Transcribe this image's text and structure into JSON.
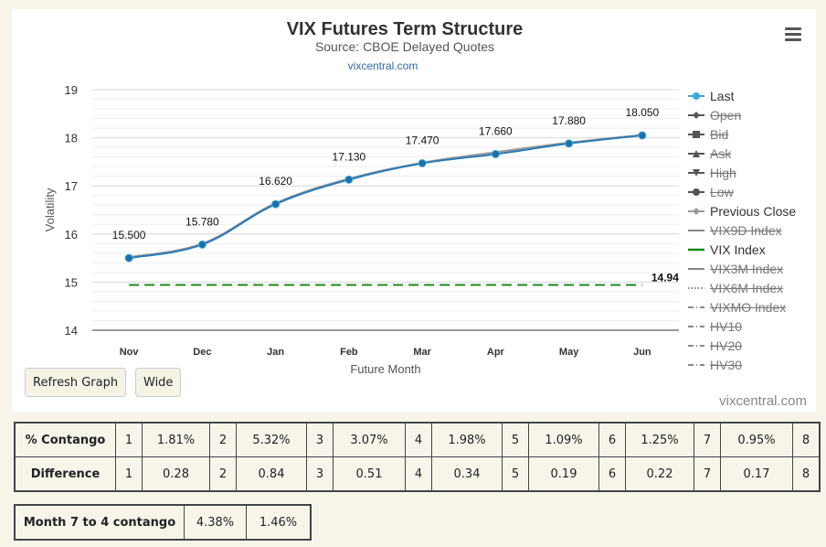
{
  "chart_data": {
    "type": "line",
    "title": "VIX Futures Term Structure",
    "subtitle": "Source: CBOE Delayed Quotes",
    "link": "vixcentral.com",
    "xlabel": "Future Month",
    "ylabel": "Volatility",
    "categories": [
      "Nov",
      "Dec",
      "Jan",
      "Feb",
      "Mar",
      "Apr",
      "May",
      "Jun"
    ],
    "ylim": [
      14,
      19
    ],
    "yticks": [
      14,
      15,
      16,
      17,
      18,
      19
    ],
    "grid": true,
    "legend_position": "right",
    "series": [
      {
        "name": "Last",
        "values": [
          15.5,
          15.78,
          16.62,
          17.13,
          17.47,
          17.66,
          17.88,
          18.05
        ],
        "labels": [
          "15.500",
          "15.780",
          "16.620",
          "17.130",
          "17.470",
          "17.660",
          "17.880",
          "18.050"
        ],
        "color": "#2a7ab8"
      },
      {
        "name": "Previous Close",
        "values": [
          15.52,
          15.8,
          16.64,
          17.15,
          17.48,
          17.7,
          17.9,
          18.06
        ],
        "color": "#999999"
      },
      {
        "name": "VIX Index",
        "value": 14.94,
        "label": "14.94",
        "color": "#1a8a1a",
        "style": "dashed"
      }
    ],
    "credit": "vixcentral.com"
  },
  "legend": [
    {
      "label": "Last",
      "symbol": "circle-line",
      "color": "#3aa9e0",
      "hidden": false
    },
    {
      "label": "Open",
      "symbol": "diamond-line",
      "color": "#555555",
      "hidden": true
    },
    {
      "label": "Bid",
      "symbol": "square-line",
      "color": "#555555",
      "hidden": true
    },
    {
      "label": "Ask",
      "symbol": "triangle-line",
      "color": "#555555",
      "hidden": true
    },
    {
      "label": "High",
      "symbol": "triangle-down-line",
      "color": "#555555",
      "hidden": true
    },
    {
      "label": "Low",
      "symbol": "circle-line",
      "color": "#555555",
      "hidden": true
    },
    {
      "label": "Previous Close",
      "symbol": "diamond-line",
      "color": "#999999",
      "hidden": false
    },
    {
      "label": "VIX9D Index",
      "symbol": "solid-line",
      "color": "#888888",
      "hidden": true
    },
    {
      "label": "VIX Index",
      "symbol": "solid-line",
      "color": "#1a8a1a",
      "hidden": false
    },
    {
      "label": "VIX3M Index",
      "symbol": "solid-line",
      "color": "#888888",
      "hidden": true
    },
    {
      "label": "VIX6M Index",
      "symbol": "dotted-line",
      "color": "#888888",
      "hidden": true
    },
    {
      "label": "VIXMO Index",
      "symbol": "dash-dot-line",
      "color": "#888888",
      "hidden": true
    },
    {
      "label": "HV10",
      "symbol": "dash-dot-line",
      "color": "#888888",
      "hidden": true
    },
    {
      "label": "HV20",
      "symbol": "dash-dot-line",
      "color": "#888888",
      "hidden": true
    },
    {
      "label": "HV30",
      "symbol": "dash-dot-line",
      "color": "#888888",
      "hidden": true
    }
  ],
  "buttons": {
    "refresh": "Refresh Graph",
    "wide": "Wide"
  },
  "contango_table": {
    "rows": [
      {
        "header": "% Contango",
        "cells": [
          "1",
          "1.81%",
          "2",
          "5.32%",
          "3",
          "3.07%",
          "4",
          "1.98%",
          "5",
          "1.09%",
          "6",
          "1.25%",
          "7",
          "0.95%",
          "8"
        ]
      },
      {
        "header": "Difference",
        "cells": [
          "1",
          "0.28",
          "2",
          "0.84",
          "3",
          "0.51",
          "4",
          "0.34",
          "5",
          "0.19",
          "6",
          "0.22",
          "7",
          "0.17",
          "8"
        ]
      }
    ]
  },
  "month_table": {
    "header": "Month 7 to 4 contango",
    "cells": [
      "4.38%",
      "1.46%"
    ]
  }
}
